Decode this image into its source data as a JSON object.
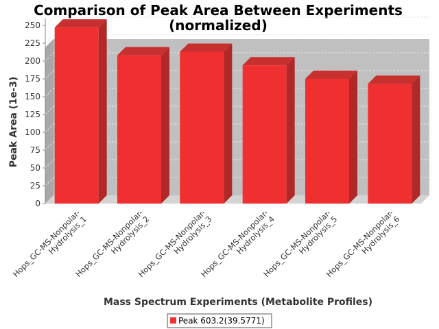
{
  "chart_data": {
    "type": "bar",
    "title_line1": "Comparison of Peak Area Between Experiments",
    "title_line2": "(normalized)",
    "xlabel": "Mass Spectrum Experiments (Metabolite Profiles)",
    "ylabel": "Peak Area (1e-3)",
    "ylim": [
      0,
      260
    ],
    "yticks": [
      "0",
      "25",
      "50",
      "75",
      "100",
      "125",
      "150",
      "175",
      "200",
      "225",
      "250"
    ],
    "grid": true,
    "legend_position": "bottom",
    "categories": [
      [
        "Hops_GC-MS-Nonpolar-",
        "Hydrolysis_1"
      ],
      [
        "Hops_GC-MS-Nonpolar-",
        "Hydrolysis_2"
      ],
      [
        "Hops_GC-MS-Nonpolar-",
        "Hydrolysis_3"
      ],
      [
        "Hops_GC-MS-Nonpolar-",
        "Hydrolysis_4"
      ],
      [
        "Hops_GC-MS-Nonpolar-",
        "Hydrolysis_5"
      ],
      [
        "Hops_GC-MS-Nonpolar-",
        "Hydrolysis_6"
      ]
    ],
    "series": [
      {
        "name": "Peak 603.2(39.5771)",
        "color": "#f03030",
        "values": [
          247,
          208,
          213,
          194,
          175,
          168
        ]
      }
    ],
    "colors": {
      "plot_back": "#c0c0c0",
      "plot_left_wall": "#a8a8a8",
      "plot_floor": "#d4d4d4",
      "bar_front": "#f03030",
      "bar_top": "#c83030",
      "bar_side": "#b02828",
      "gridline": "#e6e6e6",
      "text": "#333333"
    }
  }
}
